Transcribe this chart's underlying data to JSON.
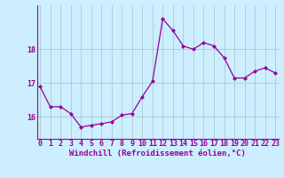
{
  "x": [
    0,
    1,
    2,
    3,
    4,
    5,
    6,
    7,
    8,
    9,
    10,
    11,
    12,
    13,
    14,
    15,
    16,
    17,
    18,
    19,
    20,
    21,
    22,
    23
  ],
  "y": [
    16.9,
    16.3,
    16.3,
    16.1,
    15.7,
    15.75,
    15.8,
    15.85,
    16.05,
    16.1,
    16.6,
    17.05,
    18.9,
    18.55,
    18.1,
    18.0,
    18.2,
    18.1,
    17.75,
    17.15,
    17.15,
    17.35,
    17.45,
    17.3
  ],
  "line_color": "#990099",
  "marker": "D",
  "marker_size": 2.0,
  "line_width": 0.9,
  "bg_color": "#cceeff",
  "grid_color": "#aacccc",
  "xlabel": "Windchill (Refroidissement éolien,°C)",
  "xlabel_fontsize": 6.5,
  "tick_fontsize": 6.0,
  "ylim": [
    15.35,
    19.3
  ],
  "yticks": [
    16,
    17,
    18
  ],
  "xticks": [
    0,
    1,
    2,
    3,
    4,
    5,
    6,
    7,
    8,
    9,
    10,
    11,
    12,
    13,
    14,
    15,
    16,
    17,
    18,
    19,
    20,
    21,
    22,
    23
  ],
  "xlim": [
    -0.3,
    23.3
  ]
}
